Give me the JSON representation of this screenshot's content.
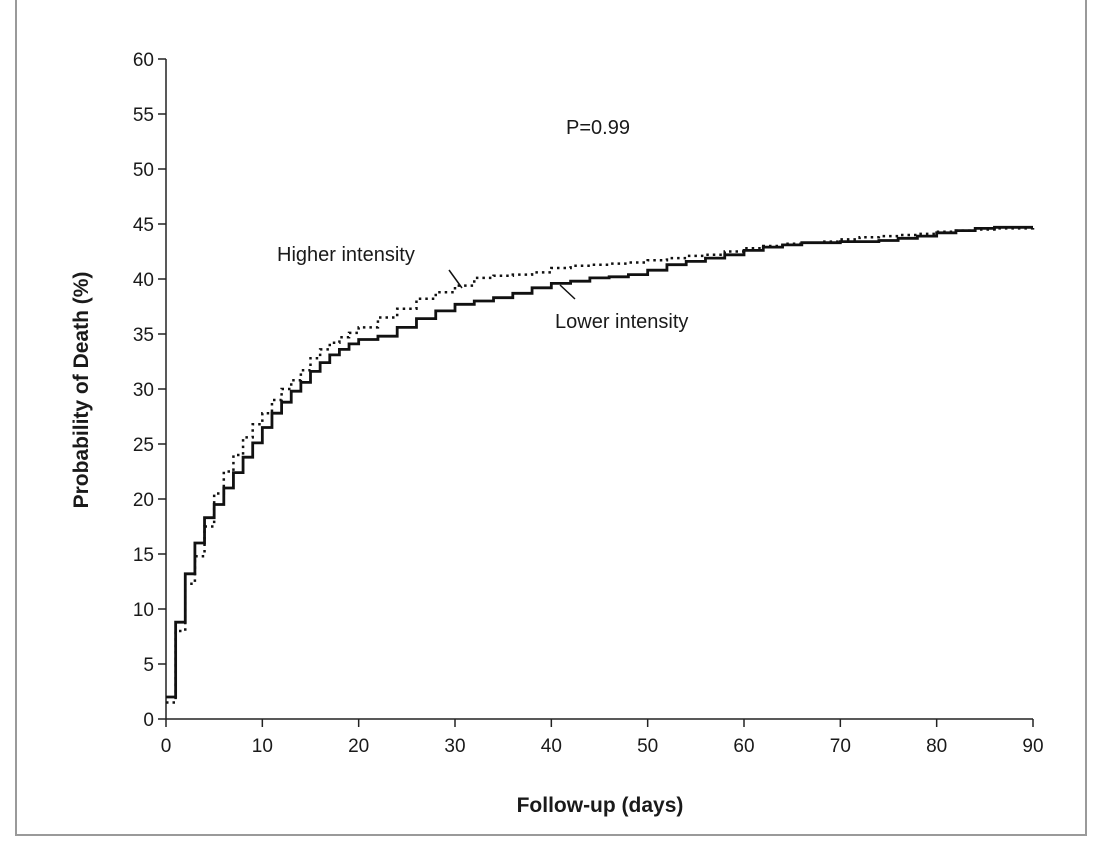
{
  "chart_data": {
    "type": "line",
    "xlabel": "Follow-up (days)",
    "ylabel": "Probability of Death (%)",
    "xlim": [
      0,
      90
    ],
    "ylim": [
      0,
      60
    ],
    "x_ticks": [
      0,
      10,
      20,
      30,
      40,
      50,
      60,
      70,
      80,
      90
    ],
    "y_ticks": [
      0,
      5,
      10,
      15,
      20,
      25,
      30,
      35,
      40,
      45,
      50,
      55,
      60
    ],
    "x_tick_labels": [
      "0",
      "10",
      "20",
      "30",
      "40",
      "50",
      "60",
      "70",
      "80",
      "90"
    ],
    "y_tick_labels": [
      "0",
      "5",
      "10",
      "15",
      "20",
      "25",
      "30",
      "35",
      "40",
      "45",
      "50",
      "55",
      "60"
    ],
    "grid": false,
    "annotation": "P=0.99",
    "series": [
      {
        "name": "Lower intensity",
        "style": "solid",
        "color": "#111111",
        "x": [
          0,
          1,
          2,
          3,
          4,
          5,
          6,
          7,
          8,
          9,
          10,
          11,
          12,
          13,
          14,
          15,
          16,
          17,
          18,
          19,
          20,
          22,
          24,
          26,
          28,
          30,
          32,
          34,
          36,
          38,
          40,
          42,
          44,
          46,
          48,
          50,
          52,
          54,
          56,
          58,
          60,
          62,
          64,
          66,
          68,
          70,
          72,
          74,
          76,
          78,
          80,
          82,
          84,
          86,
          88,
          90
        ],
        "y": [
          2,
          8.8,
          13.2,
          16,
          18.3,
          19.5,
          21,
          22.4,
          23.8,
          25.1,
          26.5,
          27.8,
          28.8,
          29.8,
          30.6,
          31.6,
          32.4,
          33.1,
          33.6,
          34.1,
          34.5,
          34.8,
          35.6,
          36.4,
          37.1,
          37.7,
          38.0,
          38.3,
          38.7,
          39.2,
          39.6,
          39.8,
          40.1,
          40.2,
          40.4,
          40.8,
          41.3,
          41.6,
          41.9,
          42.2,
          42.6,
          42.9,
          43.1,
          43.3,
          43.3,
          43.4,
          43.4,
          43.5,
          43.7,
          43.9,
          44.2,
          44.4,
          44.6,
          44.7,
          44.7,
          44.7
        ]
      },
      {
        "name": "Higher intensity",
        "style": "dotted",
        "color": "#111111",
        "x": [
          0,
          1,
          2,
          3,
          4,
          5,
          6,
          7,
          8,
          9,
          10,
          11,
          12,
          13,
          14,
          15,
          16,
          17,
          18,
          19,
          20,
          22,
          24,
          26,
          28,
          30,
          32,
          34,
          36,
          38,
          40,
          42,
          44,
          46,
          48,
          50,
          52,
          54,
          56,
          58,
          60,
          62,
          64,
          66,
          68,
          70,
          72,
          74,
          76,
          78,
          80,
          82,
          84,
          86,
          88,
          90
        ],
        "y": [
          1.5,
          8,
          12.3,
          14.8,
          17.5,
          20.5,
          22.5,
          24,
          25.6,
          26.8,
          27.8,
          29,
          30,
          30.8,
          31.7,
          32.8,
          33.6,
          34.2,
          34.7,
          35.1,
          35.6,
          36.5,
          37.3,
          38.2,
          38.8,
          39.4,
          40.1,
          40.3,
          40.4,
          40.6,
          41,
          41.2,
          41.3,
          41.4,
          41.5,
          41.7,
          41.9,
          42.1,
          42.2,
          42.5,
          42.8,
          43,
          43.2,
          43.3,
          43.4,
          43.6,
          43.8,
          43.9,
          44,
          44.1,
          44.3,
          44.4,
          44.5,
          44.6,
          44.6,
          44.7
        ]
      }
    ]
  }
}
